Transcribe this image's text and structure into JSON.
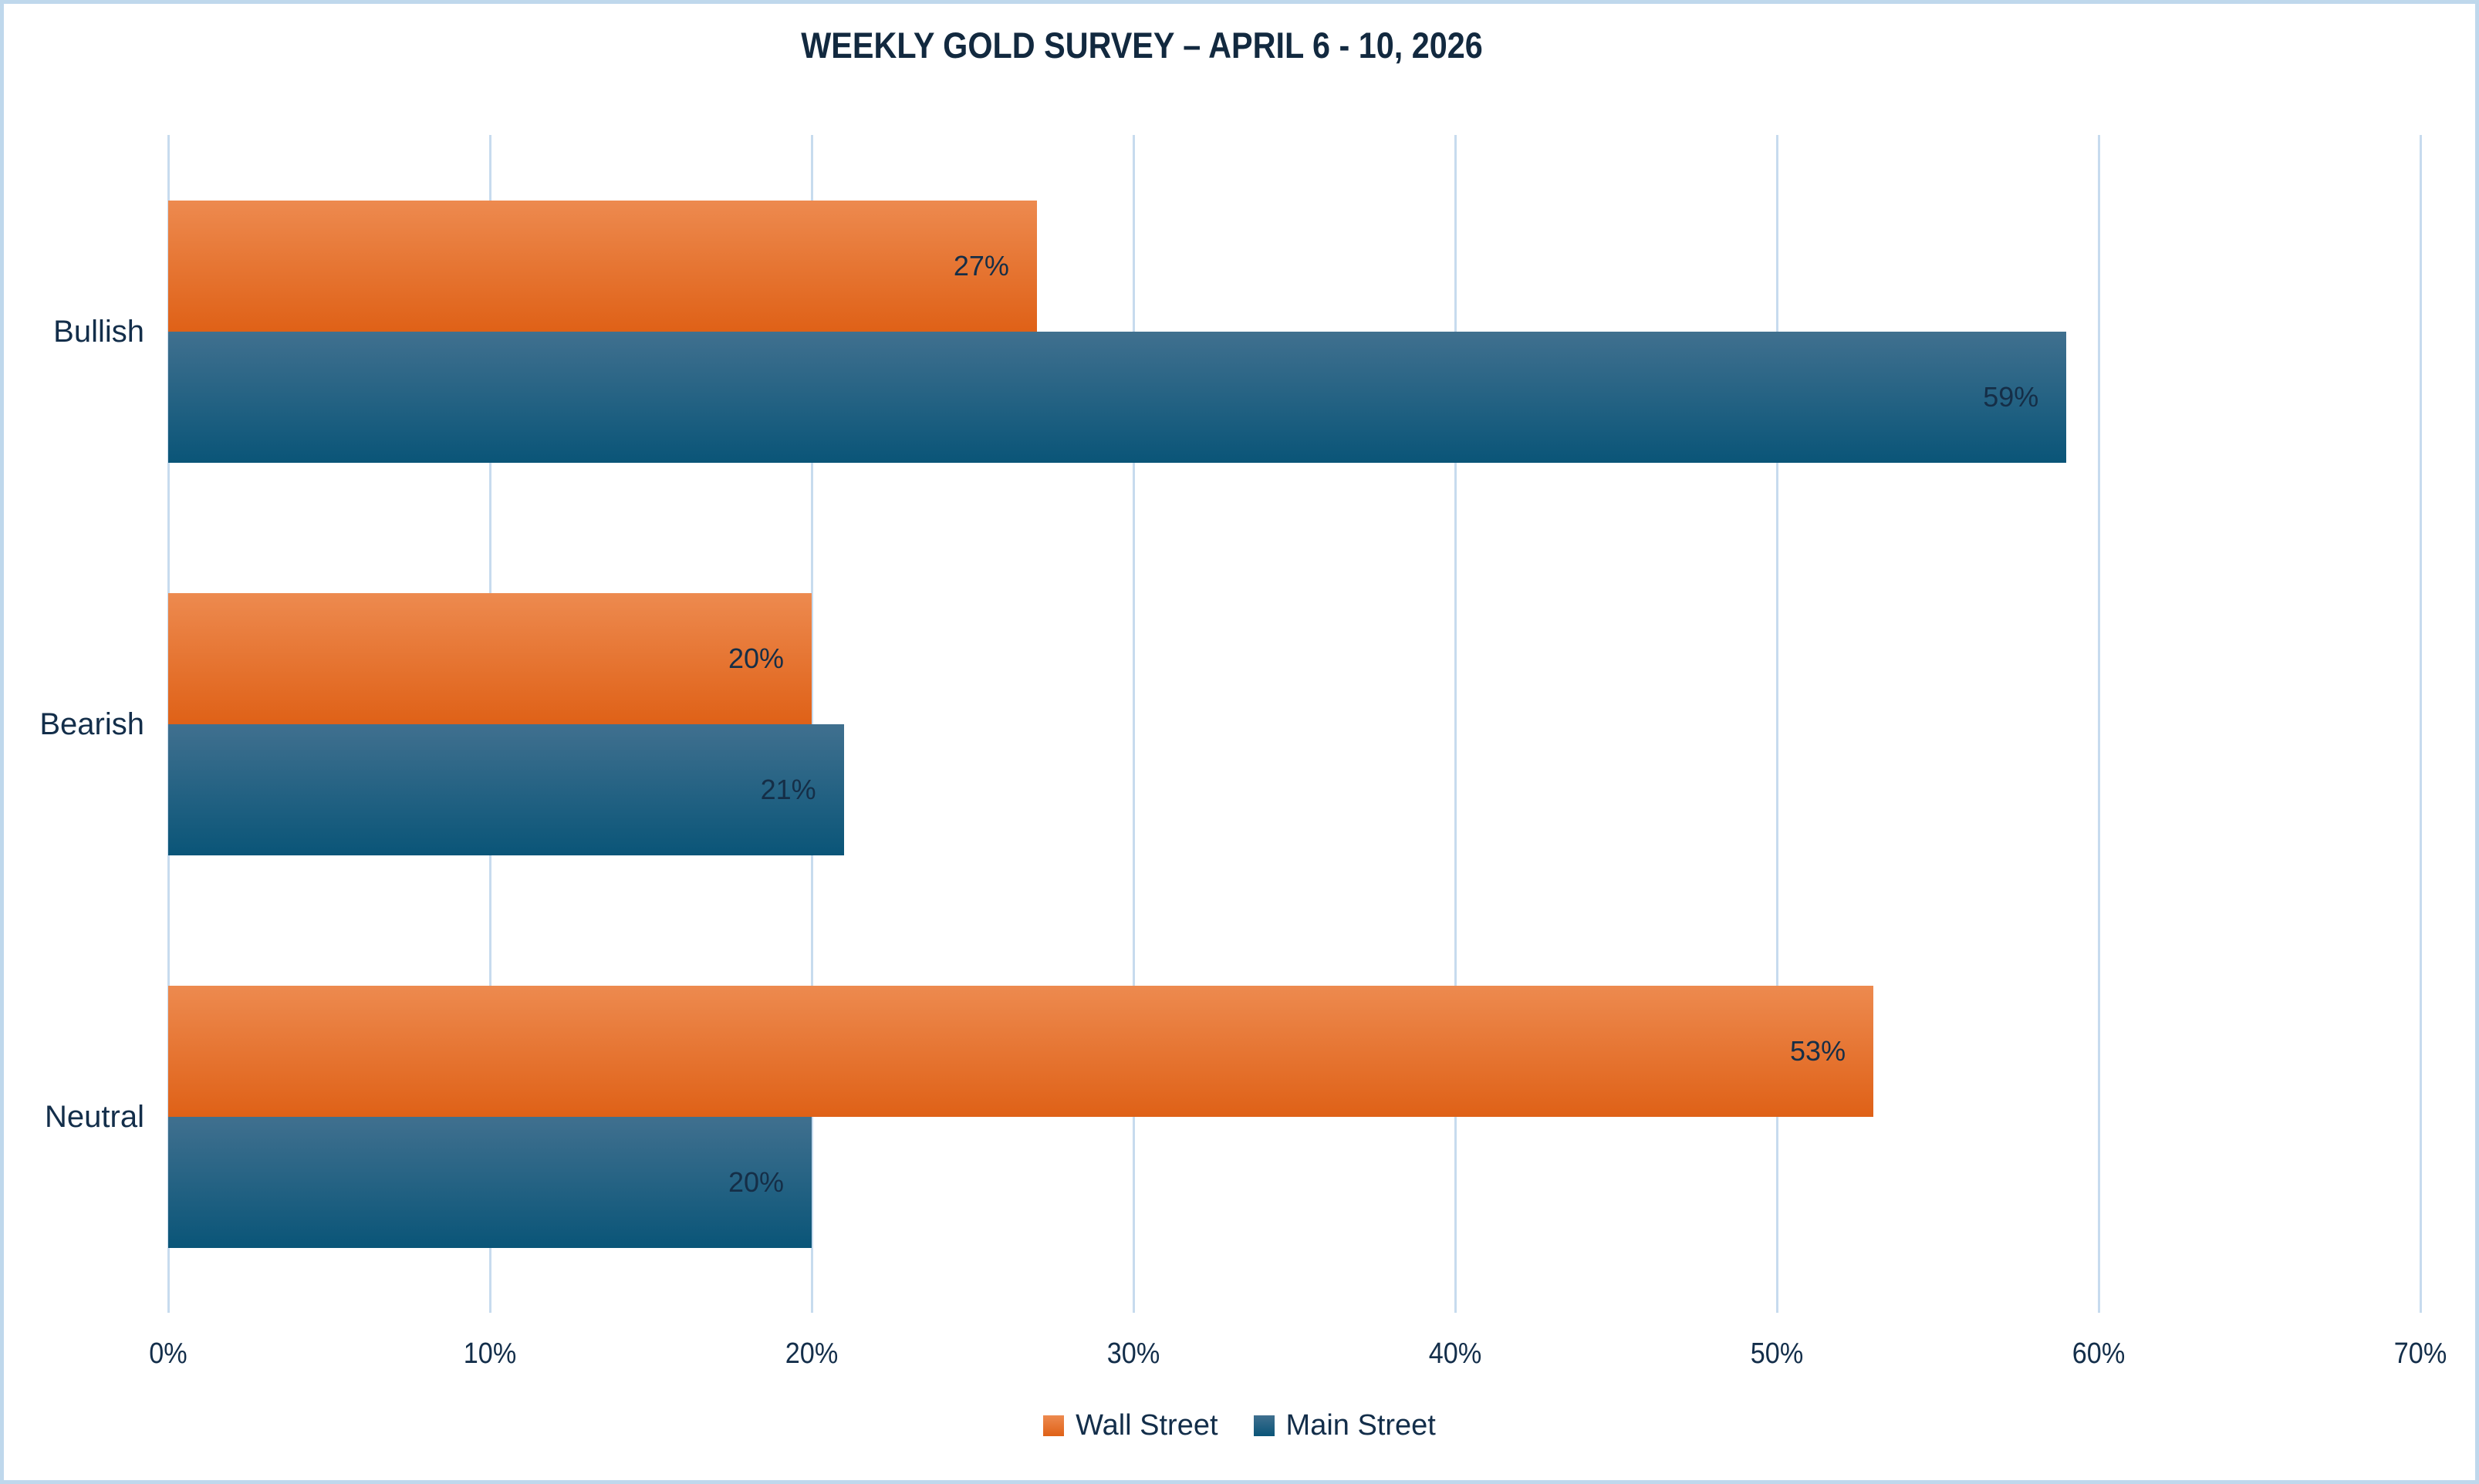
{
  "chart_data": {
    "type": "bar",
    "orientation": "horizontal",
    "title": "WEEKLY GOLD SURVEY – APRIL 6 - 10, 2026",
    "categories": [
      "Bullish",
      "Bearish",
      "Neutral"
    ],
    "series": [
      {
        "name": "Wall Street",
        "values": [
          27,
          20,
          53
        ],
        "color_top": "#ed8a4f",
        "color_bottom": "#df6117"
      },
      {
        "name": "Main Street",
        "values": [
          59,
          21,
          20
        ],
        "color_top": "#40708f",
        "color_bottom": "#0a5578"
      }
    ],
    "data_labels": [
      "27%",
      "20%",
      "53%",
      "59%",
      "21%",
      "20%"
    ],
    "value_suffix": "%",
    "x_ticks": [
      "0%",
      "10%",
      "20%",
      "30%",
      "40%",
      "50%",
      "60%",
      "70%"
    ],
    "xlim": [
      0,
      70
    ],
    "grid": true,
    "legend_position": "bottom",
    "data_label_position": "inside-end"
  },
  "colors": {
    "text": "#132e4a",
    "gridline": "#c7dbee",
    "canvas_border": "#bfd8ec",
    "background": "#ffffff",
    "wall_street_orange": "#e8703b",
    "main_street_blue": "#1c5f82"
  }
}
